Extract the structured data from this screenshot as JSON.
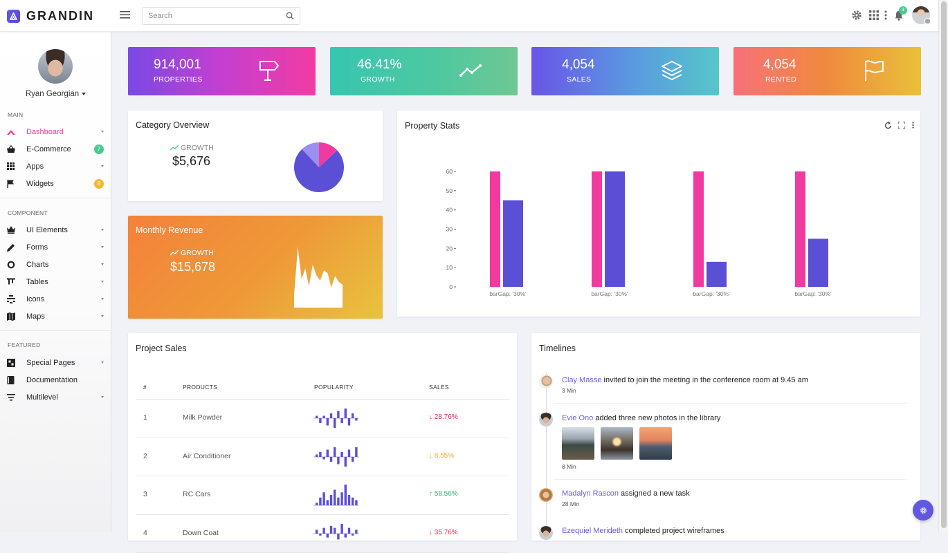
{
  "brand": {
    "name": "GRANDIN"
  },
  "search": {
    "placeholder": "Search"
  },
  "topbar": {
    "notification_count": "3"
  },
  "profile": {
    "name": "Ryan Georgian"
  },
  "sidebar": {
    "sections": {
      "main": "MAIN",
      "component": "COMPONENT",
      "featured": "FEATURED"
    },
    "items": [
      {
        "label": "Dashboard",
        "icon": "dashboard-icon"
      },
      {
        "label": "E-Commerce",
        "icon": "basket-icon",
        "badge": "7",
        "badge_color": "#4cc98f"
      },
      {
        "label": "Apps",
        "icon": "grid-icon"
      },
      {
        "label": "Widgets",
        "icon": "flag-icon",
        "badge": "8",
        "badge_color": "#f5b82e"
      },
      {
        "label": "UI Elements",
        "icon": "crown-icon"
      },
      {
        "label": "Forms",
        "icon": "pencil-icon"
      },
      {
        "label": "Charts",
        "icon": "donut-icon"
      },
      {
        "label": "Tables",
        "icon": "table-icon"
      },
      {
        "label": "Icons",
        "icon": "icons-icon"
      },
      {
        "label": "Maps",
        "icon": "map-icon"
      },
      {
        "label": "Special Pages",
        "icon": "pages-icon"
      },
      {
        "label": "Documentation",
        "icon": "book-icon"
      },
      {
        "label": "Multilevel",
        "icon": "filter-icon"
      }
    ]
  },
  "stats": [
    {
      "value": "914,001",
      "label": "PROPERTIES",
      "icon": "signpost-icon"
    },
    {
      "value": "46.41%",
      "label": "GROWTH",
      "icon": "trend-line-icon"
    },
    {
      "value": "4,054",
      "label": "SALES",
      "icon": "layers-icon"
    },
    {
      "value": "4,054",
      "label": "RENTED",
      "icon": "flag-outline-icon"
    }
  ],
  "category_overview": {
    "title": "Category Overview",
    "growth_label": "GROWTH",
    "growth_value": "$5,676",
    "pie": [
      {
        "value": 75,
        "color": "#5b4fd6"
      },
      {
        "value": 12,
        "color": "#9b8ff0"
      },
      {
        "value": 13,
        "color": "#f13aa0"
      }
    ]
  },
  "monthly_revenue": {
    "title": "Monthly Revenue",
    "growth_label": "GROWTH",
    "growth_value": "$15,678",
    "sparkline": [
      18,
      85,
      40,
      55,
      30,
      60,
      45,
      38,
      52,
      48,
      28,
      44,
      36,
      32
    ]
  },
  "property_stats": {
    "title": "Property Stats"
  },
  "chart_data": {
    "type": "bar",
    "categories": [
      "barGap: '30%'",
      "barGap: '30%'",
      "barGap: '30%'",
      "barGap: '30%'"
    ],
    "series": [
      {
        "values": [
          60,
          60,
          60,
          60
        ],
        "color": "#f13aa0"
      },
      {
        "values": [
          45,
          60,
          13,
          25
        ],
        "color": "#5b4fd6"
      }
    ],
    "ylim": [
      0,
      60
    ],
    "yticks": [
      0,
      10,
      20,
      30,
      40,
      50,
      60
    ]
  },
  "project_sales": {
    "title": "Project Sales",
    "headers": [
      "#",
      "PRODUCTS",
      "POPULARITY",
      "SALES"
    ],
    "rows": [
      {
        "num": "1",
        "product": "Milk Powder",
        "sales": "28.76%",
        "arrow": "↓",
        "color": "#e5284a",
        "spark": [
          1,
          -2,
          1,
          -3,
          2,
          -4,
          3,
          -2,
          4,
          -3,
          2,
          -1
        ]
      },
      {
        "num": "2",
        "product": "Air Conditioner",
        "sales": "8.55%",
        "arrow": "↓",
        "color": "#f5a623",
        "spark": [
          1,
          2,
          -1,
          3,
          -2,
          4,
          -3,
          2,
          -4,
          3,
          -2,
          4
        ]
      },
      {
        "num": "3",
        "product": "RC Cars",
        "sales": "58.56%",
        "arrow": "↑",
        "color": "#2db36d",
        "spark": [
          1,
          3,
          5,
          2,
          4,
          6,
          3,
          5,
          8,
          4,
          3,
          2
        ]
      },
      {
        "num": "4",
        "product": "Down Coat",
        "sales": "35.76%",
        "arrow": "↓",
        "color": "#e5284a",
        "spark": [
          2,
          -1,
          3,
          -2,
          4,
          3,
          -3,
          5,
          -2,
          3,
          -1,
          2
        ]
      }
    ]
  },
  "timelines": {
    "title": "Timelines",
    "items": [
      {
        "name": "Clay Masse",
        "text": "invited to join the meeting in the conference room at 9.45 am",
        "time": "3 Min"
      },
      {
        "name": "Evie Ono",
        "text": "added three new photos in the library",
        "time": "8 Min"
      },
      {
        "name": "Madalyn Rascon",
        "text": "assigned a new task",
        "time": "28 Min"
      },
      {
        "name": "Ezequiel Merideth",
        "text": "completed project wireframes",
        "time": ""
      }
    ]
  }
}
